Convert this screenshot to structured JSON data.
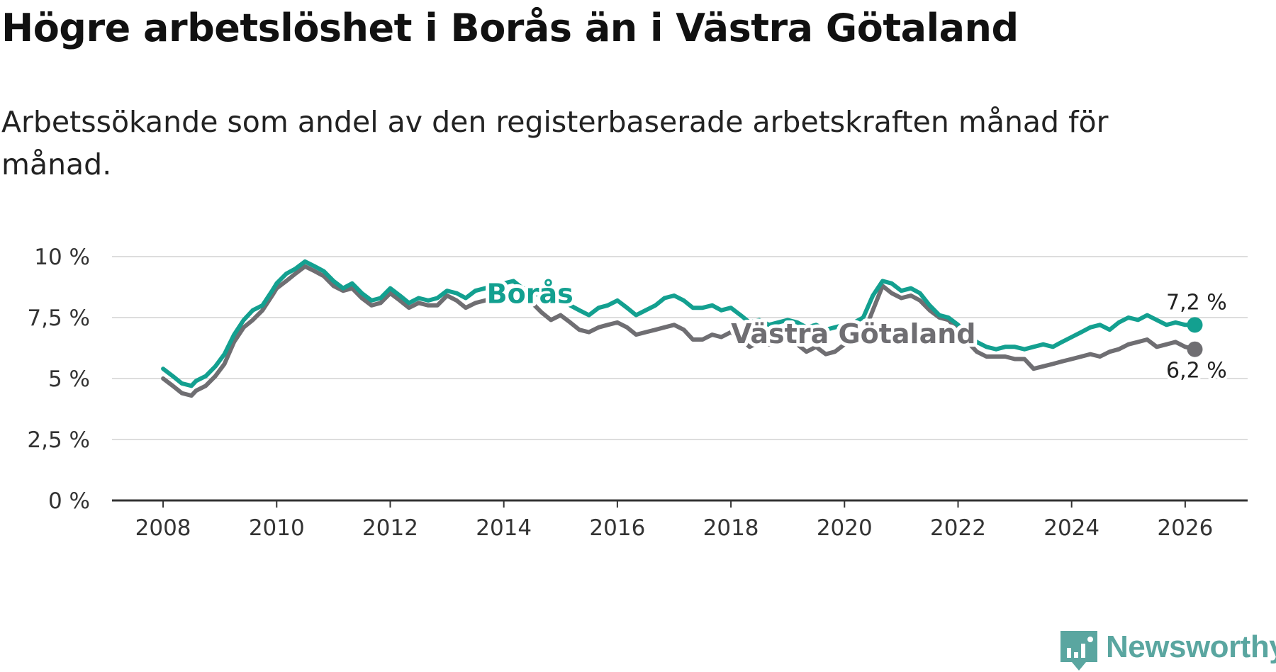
{
  "title": "Högre arbetslöshet i Borås än i Västra Götaland",
  "subtitle": "Arbetssökande som andel av den registerbaserade arbetskraften månad för månad.",
  "brand": "Newsworthy",
  "colors": {
    "boras": "#13a090",
    "vg": "#6f6e72",
    "grid": "#dddddd",
    "axis": "#333333",
    "brand": "#5aa6a0"
  },
  "chart_data": {
    "type": "line",
    "xlim": [
      2007.1,
      2027.1
    ],
    "ylim": [
      0,
      10
    ],
    "x_ticks": [
      2008,
      2010,
      2012,
      2014,
      2016,
      2018,
      2020,
      2022,
      2024,
      2026
    ],
    "x_tick_labels": [
      "2008",
      "2010",
      "2012",
      "2014",
      "2016",
      "2018",
      "2020",
      "2022",
      "2024",
      "2026"
    ],
    "y_ticks": [
      0,
      2.5,
      5,
      7.5,
      10
    ],
    "y_tick_labels": [
      "0 %",
      "2,5 %",
      "5 %",
      "7,5 %",
      "10 %"
    ],
    "grid": true,
    "series": [
      {
        "name": "Borås",
        "label": "Borås",
        "end_label": "7,2 %",
        "end_value": 7.2,
        "points": [
          [
            2008.0,
            5.4
          ],
          [
            2008.17,
            5.1
          ],
          [
            2008.33,
            4.8
          ],
          [
            2008.5,
            4.7
          ],
          [
            2008.58,
            4.9
          ],
          [
            2008.75,
            5.1
          ],
          [
            2008.92,
            5.5
          ],
          [
            2009.08,
            6.0
          ],
          [
            2009.25,
            6.8
          ],
          [
            2009.42,
            7.4
          ],
          [
            2009.58,
            7.8
          ],
          [
            2009.75,
            8.0
          ],
          [
            2009.92,
            8.6
          ],
          [
            2010.0,
            8.9
          ],
          [
            2010.17,
            9.3
          ],
          [
            2010.33,
            9.5
          ],
          [
            2010.5,
            9.8
          ],
          [
            2010.67,
            9.6
          ],
          [
            2010.83,
            9.4
          ],
          [
            2011.0,
            9.0
          ],
          [
            2011.17,
            8.7
          ],
          [
            2011.33,
            8.9
          ],
          [
            2011.5,
            8.5
          ],
          [
            2011.67,
            8.2
          ],
          [
            2011.83,
            8.3
          ],
          [
            2012.0,
            8.7
          ],
          [
            2012.17,
            8.4
          ],
          [
            2012.33,
            8.1
          ],
          [
            2012.5,
            8.3
          ],
          [
            2012.67,
            8.2
          ],
          [
            2012.83,
            8.3
          ],
          [
            2013.0,
            8.6
          ],
          [
            2013.17,
            8.5
          ],
          [
            2013.33,
            8.3
          ],
          [
            2013.5,
            8.6
          ],
          [
            2013.67,
            8.7
          ],
          [
            2013.83,
            8.8
          ],
          [
            2014.0,
            8.9
          ],
          [
            2014.17,
            9.0
          ],
          [
            2014.33,
            8.7
          ],
          [
            2014.5,
            8.6
          ],
          [
            2014.67,
            8.3
          ],
          [
            2014.83,
            8.1
          ],
          [
            2015.0,
            8.3
          ],
          [
            2015.17,
            8.0
          ],
          [
            2015.33,
            7.8
          ],
          [
            2015.5,
            7.6
          ],
          [
            2015.67,
            7.9
          ],
          [
            2015.83,
            8.0
          ],
          [
            2016.0,
            8.2
          ],
          [
            2016.17,
            7.9
          ],
          [
            2016.33,
            7.6
          ],
          [
            2016.5,
            7.8
          ],
          [
            2016.67,
            8.0
          ],
          [
            2016.83,
            8.3
          ],
          [
            2017.0,
            8.4
          ],
          [
            2017.17,
            8.2
          ],
          [
            2017.33,
            7.9
          ],
          [
            2017.5,
            7.9
          ],
          [
            2017.67,
            8.0
          ],
          [
            2017.83,
            7.8
          ],
          [
            2018.0,
            7.9
          ],
          [
            2018.17,
            7.6
          ],
          [
            2018.33,
            7.3
          ],
          [
            2018.5,
            7.4
          ],
          [
            2018.67,
            7.2
          ],
          [
            2018.83,
            7.3
          ],
          [
            2019.0,
            7.4
          ],
          [
            2019.17,
            7.3
          ],
          [
            2019.33,
            7.1
          ],
          [
            2019.5,
            7.2
          ],
          [
            2019.67,
            7.0
          ],
          [
            2019.83,
            7.1
          ],
          [
            2020.0,
            7.2
          ],
          [
            2020.17,
            7.3
          ],
          [
            2020.33,
            7.5
          ],
          [
            2020.5,
            8.4
          ],
          [
            2020.67,
            9.0
          ],
          [
            2020.83,
            8.9
          ],
          [
            2021.0,
            8.6
          ],
          [
            2021.17,
            8.7
          ],
          [
            2021.33,
            8.5
          ],
          [
            2021.5,
            8.0
          ],
          [
            2021.67,
            7.6
          ],
          [
            2021.83,
            7.5
          ],
          [
            2022.0,
            7.2
          ],
          [
            2022.17,
            6.8
          ],
          [
            2022.33,
            6.5
          ],
          [
            2022.5,
            6.3
          ],
          [
            2022.67,
            6.2
          ],
          [
            2022.83,
            6.3
          ],
          [
            2023.0,
            6.3
          ],
          [
            2023.17,
            6.2
          ],
          [
            2023.33,
            6.3
          ],
          [
            2023.5,
            6.4
          ],
          [
            2023.67,
            6.3
          ],
          [
            2023.83,
            6.5
          ],
          [
            2024.0,
            6.7
          ],
          [
            2024.17,
            6.9
          ],
          [
            2024.33,
            7.1
          ],
          [
            2024.5,
            7.2
          ],
          [
            2024.67,
            7.0
          ],
          [
            2024.83,
            7.3
          ],
          [
            2025.0,
            7.5
          ],
          [
            2025.17,
            7.4
          ],
          [
            2025.33,
            7.6
          ],
          [
            2025.5,
            7.4
          ],
          [
            2025.67,
            7.2
          ],
          [
            2025.83,
            7.3
          ],
          [
            2026.0,
            7.2
          ],
          [
            2026.17,
            7.2
          ]
        ]
      },
      {
        "name": "Västra Götaland",
        "label": "Västra Götaland",
        "end_label": "6,2 %",
        "end_value": 6.2,
        "points": [
          [
            2008.0,
            5.0
          ],
          [
            2008.17,
            4.7
          ],
          [
            2008.33,
            4.4
          ],
          [
            2008.5,
            4.3
          ],
          [
            2008.58,
            4.5
          ],
          [
            2008.75,
            4.7
          ],
          [
            2008.92,
            5.1
          ],
          [
            2009.08,
            5.6
          ],
          [
            2009.25,
            6.5
          ],
          [
            2009.42,
            7.1
          ],
          [
            2009.58,
            7.4
          ],
          [
            2009.75,
            7.8
          ],
          [
            2009.92,
            8.4
          ],
          [
            2010.0,
            8.7
          ],
          [
            2010.17,
            9.0
          ],
          [
            2010.33,
            9.3
          ],
          [
            2010.5,
            9.6
          ],
          [
            2010.67,
            9.4
          ],
          [
            2010.83,
            9.2
          ],
          [
            2011.0,
            8.8
          ],
          [
            2011.17,
            8.6
          ],
          [
            2011.33,
            8.7
          ],
          [
            2011.5,
            8.3
          ],
          [
            2011.67,
            8.0
          ],
          [
            2011.83,
            8.1
          ],
          [
            2012.0,
            8.5
          ],
          [
            2012.17,
            8.2
          ],
          [
            2012.33,
            7.9
          ],
          [
            2012.5,
            8.1
          ],
          [
            2012.67,
            8.0
          ],
          [
            2012.83,
            8.0
          ],
          [
            2013.0,
            8.4
          ],
          [
            2013.17,
            8.2
          ],
          [
            2013.33,
            7.9
          ],
          [
            2013.5,
            8.1
          ],
          [
            2013.67,
            8.2
          ],
          [
            2013.83,
            8.3
          ],
          [
            2014.0,
            8.5
          ],
          [
            2014.17,
            8.6
          ],
          [
            2014.33,
            8.3
          ],
          [
            2014.5,
            8.1
          ],
          [
            2014.67,
            7.7
          ],
          [
            2014.83,
            7.4
          ],
          [
            2015.0,
            7.6
          ],
          [
            2015.17,
            7.3
          ],
          [
            2015.33,
            7.0
          ],
          [
            2015.5,
            6.9
          ],
          [
            2015.67,
            7.1
          ],
          [
            2015.83,
            7.2
          ],
          [
            2016.0,
            7.3
          ],
          [
            2016.17,
            7.1
          ],
          [
            2016.33,
            6.8
          ],
          [
            2016.5,
            6.9
          ],
          [
            2016.67,
            7.0
          ],
          [
            2016.83,
            7.1
          ],
          [
            2017.0,
            7.2
          ],
          [
            2017.17,
            7.0
          ],
          [
            2017.33,
            6.6
          ],
          [
            2017.5,
            6.6
          ],
          [
            2017.67,
            6.8
          ],
          [
            2017.83,
            6.7
          ],
          [
            2018.0,
            6.9
          ],
          [
            2018.17,
            6.6
          ],
          [
            2018.33,
            6.3
          ],
          [
            2018.5,
            6.5
          ],
          [
            2018.67,
            6.4
          ],
          [
            2018.83,
            6.5
          ],
          [
            2019.0,
            6.6
          ],
          [
            2019.17,
            6.4
          ],
          [
            2019.33,
            6.1
          ],
          [
            2019.5,
            6.3
          ],
          [
            2019.67,
            6.0
          ],
          [
            2019.83,
            6.1
          ],
          [
            2020.0,
            6.4
          ],
          [
            2020.17,
            6.5
          ],
          [
            2020.33,
            6.8
          ],
          [
            2020.5,
            7.8
          ],
          [
            2020.67,
            8.8
          ],
          [
            2020.83,
            8.5
          ],
          [
            2021.0,
            8.3
          ],
          [
            2021.17,
            8.4
          ],
          [
            2021.33,
            8.2
          ],
          [
            2021.5,
            7.8
          ],
          [
            2021.67,
            7.5
          ],
          [
            2021.83,
            7.4
          ],
          [
            2022.0,
            7.0
          ],
          [
            2022.17,
            6.5
          ],
          [
            2022.33,
            6.1
          ],
          [
            2022.5,
            5.9
          ],
          [
            2022.67,
            5.9
          ],
          [
            2022.83,
            5.9
          ],
          [
            2023.0,
            5.8
          ],
          [
            2023.17,
            5.8
          ],
          [
            2023.33,
            5.4
          ],
          [
            2023.5,
            5.5
          ],
          [
            2023.67,
            5.6
          ],
          [
            2023.83,
            5.7
          ],
          [
            2024.0,
            5.8
          ],
          [
            2024.17,
            5.9
          ],
          [
            2024.33,
            6.0
          ],
          [
            2024.5,
            5.9
          ],
          [
            2024.67,
            6.1
          ],
          [
            2024.83,
            6.2
          ],
          [
            2025.0,
            6.4
          ],
          [
            2025.17,
            6.5
          ],
          [
            2025.33,
            6.6
          ],
          [
            2025.5,
            6.3
          ],
          [
            2025.67,
            6.4
          ],
          [
            2025.83,
            6.5
          ],
          [
            2026.0,
            6.3
          ],
          [
            2026.17,
            6.2
          ]
        ]
      }
    ]
  }
}
